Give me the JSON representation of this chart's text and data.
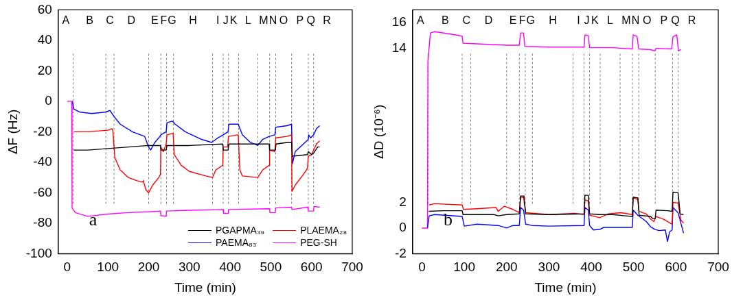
{
  "chart_data": [
    {
      "type": "line",
      "xlabel": "Time (min)",
      "ylabel": "ΔF (Hz)",
      "xlim": [
        -22,
        700
      ],
      "xticks": [
        0,
        100,
        200,
        300,
        400,
        500,
        600,
        700
      ],
      "ylim": [
        -100,
        60
      ],
      "yticks": [
        -100,
        -80,
        -60,
        -40,
        -20,
        0,
        20,
        40,
        60
      ],
      "grid": false,
      "legend": "bottom right",
      "series": [
        {
          "name": "PGAPMA₃₉",
          "color": "#000000",
          "x": [
            16,
            50,
            100,
            150,
            200,
            229,
            230,
            243,
            245,
            300,
            382,
            383,
            395,
            397,
            450,
            496,
            497,
            511,
            513,
            540,
            551,
            553,
            590,
            592,
            600,
            605,
            615,
            620
          ],
          "values": [
            -32,
            -32,
            -31,
            -30,
            -29,
            -29,
            -32,
            -32,
            -29,
            -29,
            -28,
            -32,
            -32,
            -28,
            -28,
            -28,
            -32,
            -32,
            -28,
            -27,
            -27,
            -36,
            -35,
            -33,
            -35,
            -34,
            -30,
            -30
          ]
        },
        {
          "name": "PLAEMA₂₈",
          "color": "#ff0000",
          "x": [
            16,
            50,
            100,
            110,
            112,
            117,
            130,
            150,
            170,
            185,
            187,
            193,
            200,
            210,
            225,
            229,
            230,
            236,
            243,
            245,
            260,
            263,
            280,
            300,
            340,
            357,
            365,
            382,
            383,
            394,
            396,
            420,
            424,
            430,
            468,
            480,
            496,
            497,
            510,
            512,
            540,
            551,
            552,
            560,
            580,
            590,
            592,
            600,
            612,
            620
          ],
          "values": [
            -20,
            -20,
            -19,
            -18,
            -19,
            -37,
            -45,
            -50,
            -52,
            -53,
            -52,
            -58,
            -60,
            -55,
            -50,
            -48,
            -30,
            -33,
            -28,
            -22,
            -21,
            -35,
            -42,
            -46,
            -49,
            -50,
            -45,
            -42,
            -30,
            -30,
            -23,
            -22,
            -45,
            -49,
            -50,
            -45,
            -42,
            -32,
            -33,
            -24,
            -23,
            -22,
            -59,
            -55,
            -48,
            -44,
            -36,
            -35,
            -28,
            -26
          ]
        },
        {
          "name": "PAEMA₈₃",
          "color": "#0000ff",
          "x": [
            13,
            16,
            30,
            60,
            95,
            105,
            115,
            130,
            160,
            190,
            200,
            205,
            215,
            225,
            230,
            243,
            245,
            258,
            265,
            290,
            330,
            355,
            370,
            383,
            395,
            397,
            420,
            430,
            450,
            468,
            480,
            496,
            510,
            512,
            540,
            551,
            553,
            560,
            580,
            592,
            593,
            598,
            605,
            612,
            620
          ],
          "values": [
            0,
            -5,
            -7,
            -8,
            -7,
            -6,
            -10,
            -15,
            -20,
            -23,
            -30,
            -32,
            -27,
            -24,
            -22,
            -20,
            -14,
            -13,
            -15,
            -20,
            -25,
            -27,
            -24,
            -22,
            -20,
            -15,
            -15,
            -22,
            -27,
            -29,
            -25,
            -23,
            -22,
            -17,
            -16,
            -15,
            -41,
            -33,
            -28,
            -25,
            -22,
            -24,
            -22,
            -18,
            -16
          ]
        },
        {
          "name": "PEG-SH",
          "color": "#ff00ff",
          "x": [
            0,
            11,
            12,
            20,
            50,
            100,
            150,
            200,
            229,
            230,
            243,
            244,
            300,
            383,
            384,
            395,
            396,
            497,
            498,
            511,
            512,
            551,
            552,
            591,
            592,
            605,
            606,
            620
          ],
          "values": [
            0,
            0,
            -70,
            -73,
            -75.5,
            -74,
            -73,
            -72.5,
            -72,
            -75,
            -75.5,
            -72,
            -71.5,
            -71,
            -73.5,
            -73.5,
            -71,
            -70.5,
            -73,
            -73,
            -70,
            -69.5,
            -71,
            -69.5,
            -72,
            -72,
            -69,
            -69.5
          ]
        }
      ],
      "ref_lines": [
        {
          "axis": "x",
          "value": 15,
          "color": "#555555",
          "line_style": "dashed"
        },
        {
          "axis": "x",
          "value": 95,
          "color": "#555555",
          "line_style": "dashed"
        },
        {
          "axis": "x",
          "value": 115,
          "color": "#555555",
          "line_style": "dashed"
        },
        {
          "axis": "x",
          "value": 200,
          "color": "#555555",
          "line_style": "dashed"
        },
        {
          "axis": "x",
          "value": 230,
          "color": "#555555",
          "line_style": "dashed"
        },
        {
          "axis": "x",
          "value": 244,
          "color": "#555555",
          "line_style": "dashed"
        },
        {
          "axis": "x",
          "value": 261,
          "color": "#555555",
          "line_style": "dashed"
        },
        {
          "axis": "x",
          "value": 357,
          "color": "#555555",
          "line_style": "dashed"
        },
        {
          "axis": "x",
          "value": 383,
          "color": "#555555",
          "line_style": "dashed"
        },
        {
          "axis": "x",
          "value": 396,
          "color": "#555555",
          "line_style": "dashed"
        },
        {
          "axis": "x",
          "value": 421,
          "color": "#555555",
          "line_style": "dashed"
        },
        {
          "axis": "x",
          "value": 468,
          "color": "#555555",
          "line_style": "dashed"
        },
        {
          "axis": "x",
          "value": 497,
          "color": "#555555",
          "line_style": "dashed"
        },
        {
          "axis": "x",
          "value": 512,
          "color": "#555555",
          "line_style": "dashed"
        },
        {
          "axis": "x",
          "value": 551,
          "color": "#555555",
          "line_style": "dashed"
        },
        {
          "axis": "x",
          "value": 592,
          "color": "#555555",
          "line_style": "dashed"
        },
        {
          "axis": "x",
          "value": 605,
          "color": "#555555",
          "line_style": "dashed"
        }
      ],
      "annotations": [
        "a",
        "A",
        "B",
        "C",
        "D",
        "E",
        "F",
        "G",
        "H",
        "I",
        "J",
        "K",
        "L",
        "M",
        "N",
        "O",
        "P",
        "Q",
        "R"
      ]
    },
    {
      "type": "line",
      "xlabel": "Time (min)",
      "ylabel": "ΔD (10⁻⁶)",
      "xlim": [
        -22,
        700
      ],
      "xticks": [
        0,
        100,
        200,
        300,
        400,
        500,
        600,
        700
      ],
      "ylim": [
        -2,
        17
      ],
      "yticks": [
        -2,
        0,
        2,
        14,
        16
      ],
      "grid": false,
      "series": [
        {
          "color": "#000000",
          "x": [
            16,
            50,
            95,
            97,
            170,
            180,
            200,
            230,
            233,
            241,
            245,
            300,
            383,
            385,
            393,
            396,
            420,
            450,
            480,
            497,
            499,
            510,
            513,
            540,
            545,
            551,
            553,
            580,
            591,
            593,
            605,
            610,
            618
          ],
          "values": [
            1.3,
            1.35,
            1.35,
            1.05,
            1.05,
            0.95,
            1.05,
            1.1,
            2.5,
            2.5,
            1.1,
            1.05,
            1.1,
            2.55,
            2.55,
            1.1,
            1.05,
            1.05,
            0.95,
            0.9,
            2.4,
            2.35,
            1,
            0.9,
            0.75,
            0.75,
            1.4,
            1.35,
            1.3,
            2.8,
            2.75,
            1.1,
            1.05
          ]
        },
        {
          "color": "#ff0000",
          "x": [
            17,
            30,
            95,
            98,
            130,
            175,
            180,
            195,
            215,
            230,
            233,
            240,
            245,
            300,
            360,
            383,
            385,
            393,
            396,
            420,
            440,
            470,
            497,
            499,
            510,
            513,
            530,
            540,
            548,
            553,
            570,
            591,
            593,
            605,
            612,
            618
          ],
          "values": [
            1.8,
            1.9,
            1.8,
            1.45,
            1.5,
            1.6,
            1.3,
            1.7,
            1.45,
            1.2,
            2.4,
            2.4,
            1.2,
            1.05,
            1.15,
            1.05,
            2.2,
            2.1,
            1,
            0.8,
            1.1,
            1.2,
            1.05,
            2.4,
            2.2,
            1.3,
            1.1,
            0.7,
            0.5,
            0.9,
            0.7,
            0.3,
            2,
            1.95,
            0.6,
            0.4
          ]
        },
        {
          "color": "#0000ff",
          "x": [
            13,
            17,
            30,
            95,
            100,
            130,
            180,
            200,
            215,
            230,
            233,
            240,
            245,
            260,
            300,
            383,
            385,
            393,
            396,
            405,
            420,
            430,
            497,
            499,
            510,
            530,
            540,
            550,
            560,
            575,
            580,
            585,
            591,
            593,
            605,
            618
          ],
          "values": [
            0,
            0.95,
            1.05,
            0.9,
            0.15,
            0.3,
            0.2,
            0,
            0.2,
            0.2,
            1.6,
            1.4,
            0.3,
            0.2,
            0.15,
            0.2,
            1.6,
            1.4,
            0.2,
            -0.15,
            -0.1,
            0.05,
            0.05,
            1.4,
            1,
            0.5,
            0.1,
            -0.1,
            -0.2,
            -0.15,
            -1.05,
            -0.3,
            -0.15,
            1.6,
            1.2,
            -0.4
          ]
        },
        {
          "color": "#ff00ff",
          "x": [
            0,
            13,
            14,
            20,
            30,
            70,
            95,
            97,
            130,
            200,
            230,
            233,
            240,
            243,
            300,
            383,
            385,
            393,
            396,
            450,
            497,
            499,
            508,
            512,
            540,
            550,
            553,
            590,
            593,
            602,
            606,
            612
          ],
          "values": [
            0,
            0,
            13,
            15.2,
            15.3,
            15.1,
            14.95,
            14.4,
            14.35,
            14.25,
            14.25,
            15.2,
            15.2,
            14.15,
            14.1,
            14.1,
            15.05,
            15,
            14.05,
            14.05,
            13.95,
            15.05,
            14.95,
            13.95,
            13.9,
            13.8,
            14,
            13.95,
            14.9,
            15.05,
            13.8,
            13.9
          ]
        }
      ],
      "ref_lines": [
        {
          "axis": "x",
          "value": 15,
          "color": "#555555",
          "line_style": "dashed"
        },
        {
          "axis": "x",
          "value": 95,
          "color": "#555555",
          "line_style": "dashed"
        },
        {
          "axis": "x",
          "value": 115,
          "color": "#555555",
          "line_style": "dashed"
        },
        {
          "axis": "x",
          "value": 200,
          "color": "#555555",
          "line_style": "dashed"
        },
        {
          "axis": "x",
          "value": 230,
          "color": "#555555",
          "line_style": "dashed"
        },
        {
          "axis": "x",
          "value": 244,
          "color": "#555555",
          "line_style": "dashed"
        },
        {
          "axis": "x",
          "value": 261,
          "color": "#555555",
          "line_style": "dashed"
        },
        {
          "axis": "x",
          "value": 357,
          "color": "#555555",
          "line_style": "dashed"
        },
        {
          "axis": "x",
          "value": 383,
          "color": "#555555",
          "line_style": "dashed"
        },
        {
          "axis": "x",
          "value": 396,
          "color": "#555555",
          "line_style": "dashed"
        },
        {
          "axis": "x",
          "value": 421,
          "color": "#555555",
          "line_style": "dashed"
        },
        {
          "axis": "x",
          "value": 468,
          "color": "#555555",
          "line_style": "dashed"
        },
        {
          "axis": "x",
          "value": 497,
          "color": "#555555",
          "line_style": "dashed"
        },
        {
          "axis": "x",
          "value": 512,
          "color": "#555555",
          "line_style": "dashed"
        },
        {
          "axis": "x",
          "value": 551,
          "color": "#555555",
          "line_style": "dashed"
        },
        {
          "axis": "x",
          "value": 592,
          "color": "#555555",
          "line_style": "dashed"
        },
        {
          "axis": "x",
          "value": 605,
          "color": "#555555",
          "line_style": "dashed"
        }
      ],
      "annotations": [
        "b",
        "A",
        "B",
        "C",
        "D",
        "E",
        "F",
        "G",
        "H",
        "I",
        "J",
        "K",
        "L",
        "M",
        "N",
        "O",
        "P",
        "Q",
        "R"
      ]
    }
  ]
}
